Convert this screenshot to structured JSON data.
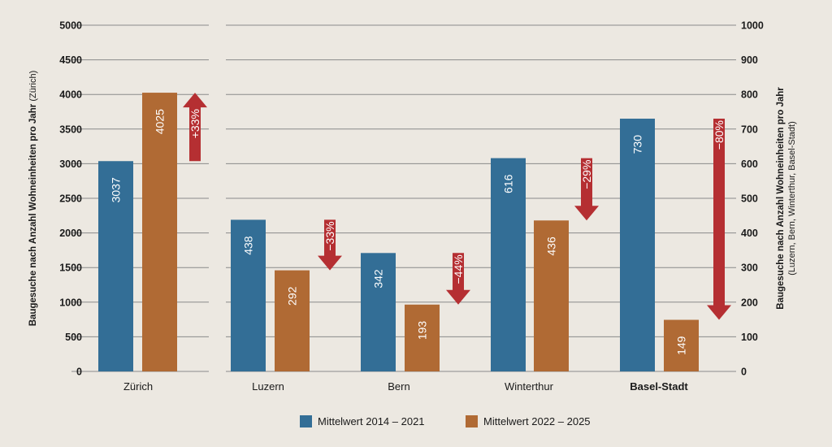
{
  "chart_data": {
    "type": "bar",
    "categories": [
      "Zürich",
      "Luzern",
      "Bern",
      "Winterthur",
      "Basel-Stadt"
    ],
    "bold_categories": [
      "Basel-Stadt"
    ],
    "series": [
      {
        "name": "Mittelwert 2014 – 2021",
        "color": "#336e96",
        "values": [
          3037,
          438,
          342,
          616,
          730
        ]
      },
      {
        "name": "Mittelwert 2022 – 2025",
        "color": "#b06a34",
        "values": [
          4025,
          292,
          193,
          436,
          149
        ]
      }
    ],
    "axis_assignment": [
      "left",
      "right",
      "right",
      "right",
      "right"
    ],
    "y_left": {
      "label": "Baugesuche nach Anzahl Wohneinheiten pro Jahr",
      "label_note": "(Zürich)",
      "ylim": [
        0,
        5000
      ],
      "ticks": [
        "0",
        "500",
        "1000",
        "1500",
        "2000",
        "2500",
        "3000",
        "3500",
        "4000",
        "4500",
        "5000"
      ]
    },
    "y_right": {
      "label": "Baugesuche nach Anzahl Wohneinheiten pro Jahr",
      "label_note": "(Luzern, Bern, Winterthur, Basel-Stadt)",
      "ylim": [
        0,
        1000
      ],
      "ticks": [
        "0",
        "100",
        "200",
        "300",
        "400",
        "500",
        "600",
        "700",
        "800",
        "900",
        "1000"
      ]
    },
    "changes": [
      {
        "category": "Zürich",
        "label": "+33%",
        "direction": "up"
      },
      {
        "category": "Luzern",
        "label": "−33%",
        "direction": "down"
      },
      {
        "category": "Bern",
        "label": "−44%",
        "direction": "down"
      },
      {
        "category": "Winterthur",
        "label": "−29%",
        "direction": "down"
      },
      {
        "category": "Basel-Stadt",
        "label": "−80%",
        "direction": "down"
      }
    ],
    "arrow_color": "#b52f32",
    "grid": true,
    "legend_position": "bottom-center"
  }
}
